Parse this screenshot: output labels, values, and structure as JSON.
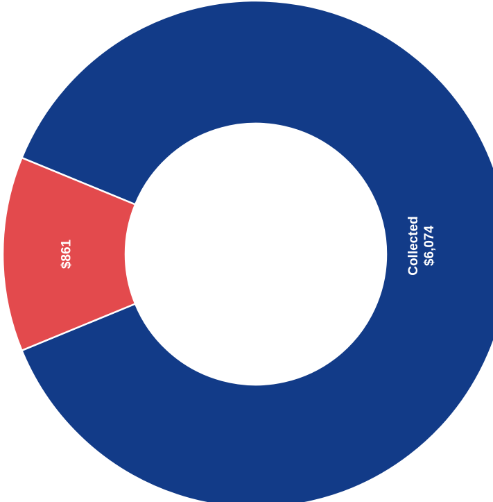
{
  "chart_data": {
    "type": "pie",
    "variant": "donut",
    "title": "",
    "series": [
      {
        "name": "Collected",
        "value": 6074,
        "label_lines": [
          "Collected",
          "$6,074"
        ],
        "color": "#123b88"
      },
      {
        "name": "",
        "value": 861,
        "label_lines": [
          "$861"
        ],
        "color": "#e34a4d"
      }
    ],
    "label_orientation": "rotated-vertical",
    "separator_color": "#ffffff",
    "legend": "none"
  }
}
